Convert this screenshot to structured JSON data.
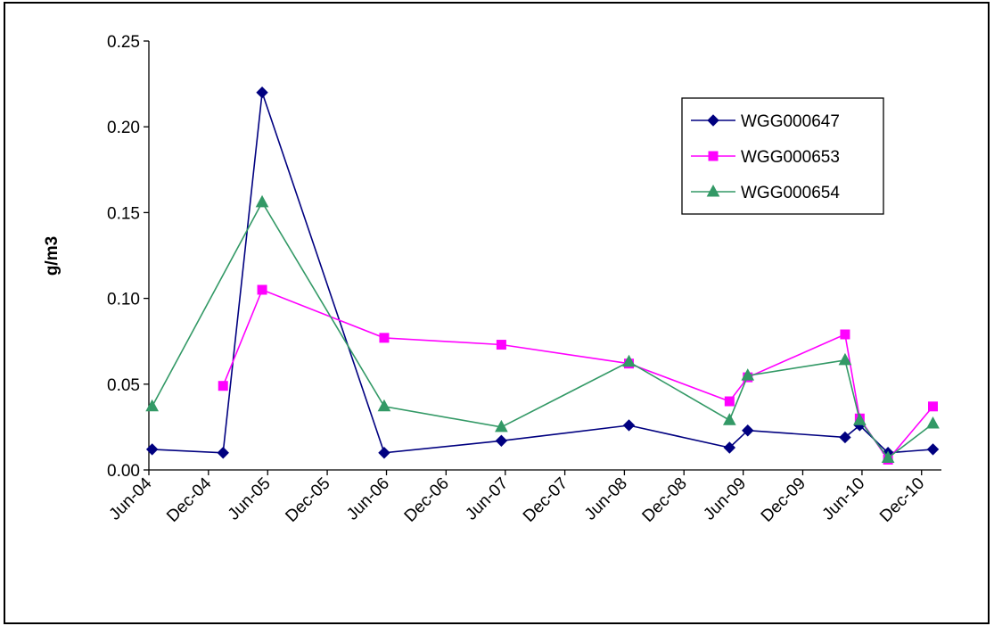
{
  "chart_data": {
    "type": "line",
    "title": "",
    "xlabel": "",
    "ylabel": "g/m3",
    "ylim": [
      0,
      0.25
    ],
    "yticks": [
      "0.00",
      "0.05",
      "0.10",
      "0.15",
      "0.20",
      "0.25"
    ],
    "xlim": [
      "2004-06-01",
      "2011-01-31"
    ],
    "xticks": [
      {
        "date": "2004-06-01",
        "label": "Jun-04"
      },
      {
        "date": "2004-12-01",
        "label": "Dec-04"
      },
      {
        "date": "2005-06-01",
        "label": "Jun-05"
      },
      {
        "date": "2005-12-01",
        "label": "Dec-05"
      },
      {
        "date": "2006-06-01",
        "label": "Jun-06"
      },
      {
        "date": "2006-12-01",
        "label": "Dec-06"
      },
      {
        "date": "2007-06-01",
        "label": "Jun-07"
      },
      {
        "date": "2007-12-01",
        "label": "Dec-07"
      },
      {
        "date": "2008-06-01",
        "label": "Jun-08"
      },
      {
        "date": "2008-12-01",
        "label": "Dec-08"
      },
      {
        "date": "2009-06-01",
        "label": "Jun-09"
      },
      {
        "date": "2009-12-01",
        "label": "Dec-09"
      },
      {
        "date": "2010-06-01",
        "label": "Jun-10"
      },
      {
        "date": "2010-12-01",
        "label": "Dec-10"
      }
    ],
    "grid": false,
    "legend_position": "top-right",
    "series": [
      {
        "name": "WGG000647",
        "color": "#000080",
        "marker": "diamond",
        "points": [
          {
            "x": "2004-06-11",
            "y": 0.012
          },
          {
            "x": "2005-01-15",
            "y": 0.01
          },
          {
            "x": "2005-05-15",
            "y": 0.22
          },
          {
            "x": "2006-05-25",
            "y": 0.01
          },
          {
            "x": "2007-05-20",
            "y": 0.017
          },
          {
            "x": "2008-06-15",
            "y": 0.026
          },
          {
            "x": "2009-04-20",
            "y": 0.013
          },
          {
            "x": "2009-06-15",
            "y": 0.023
          },
          {
            "x": "2010-04-10",
            "y": 0.019
          },
          {
            "x": "2010-05-25",
            "y": 0.026
          },
          {
            "x": "2010-08-20",
            "y": 0.01
          },
          {
            "x": "2011-01-05",
            "y": 0.012
          }
        ]
      },
      {
        "name": "WGG000653",
        "color": "#FF00FF",
        "marker": "square",
        "points": [
          {
            "x": "2005-01-15",
            "y": 0.049
          },
          {
            "x": "2005-05-15",
            "y": 0.105
          },
          {
            "x": "2006-05-25",
            "y": 0.077
          },
          {
            "x": "2007-05-20",
            "y": 0.073
          },
          {
            "x": "2008-06-15",
            "y": 0.062
          },
          {
            "x": "2009-04-20",
            "y": 0.04
          },
          {
            "x": "2009-06-15",
            "y": 0.054
          },
          {
            "x": "2010-04-10",
            "y": 0.079
          },
          {
            "x": "2010-05-25",
            "y": 0.03
          },
          {
            "x": "2010-08-20",
            "y": 0.006
          },
          {
            "x": "2011-01-05",
            "y": 0.037
          }
        ]
      },
      {
        "name": "WGG000654",
        "color": "#339966",
        "marker": "triangle",
        "points": [
          {
            "x": "2004-06-11",
            "y": 0.037
          },
          {
            "x": "2005-05-15",
            "y": 0.156
          },
          {
            "x": "2006-05-25",
            "y": 0.037
          },
          {
            "x": "2007-05-20",
            "y": 0.025
          },
          {
            "x": "2008-06-15",
            "y": 0.063
          },
          {
            "x": "2009-04-20",
            "y": 0.029
          },
          {
            "x": "2009-06-15",
            "y": 0.055
          },
          {
            "x": "2010-04-10",
            "y": 0.064
          },
          {
            "x": "2010-05-25",
            "y": 0.029
          },
          {
            "x": "2010-08-20",
            "y": 0.007
          },
          {
            "x": "2011-01-05",
            "y": 0.027
          }
        ]
      }
    ]
  }
}
